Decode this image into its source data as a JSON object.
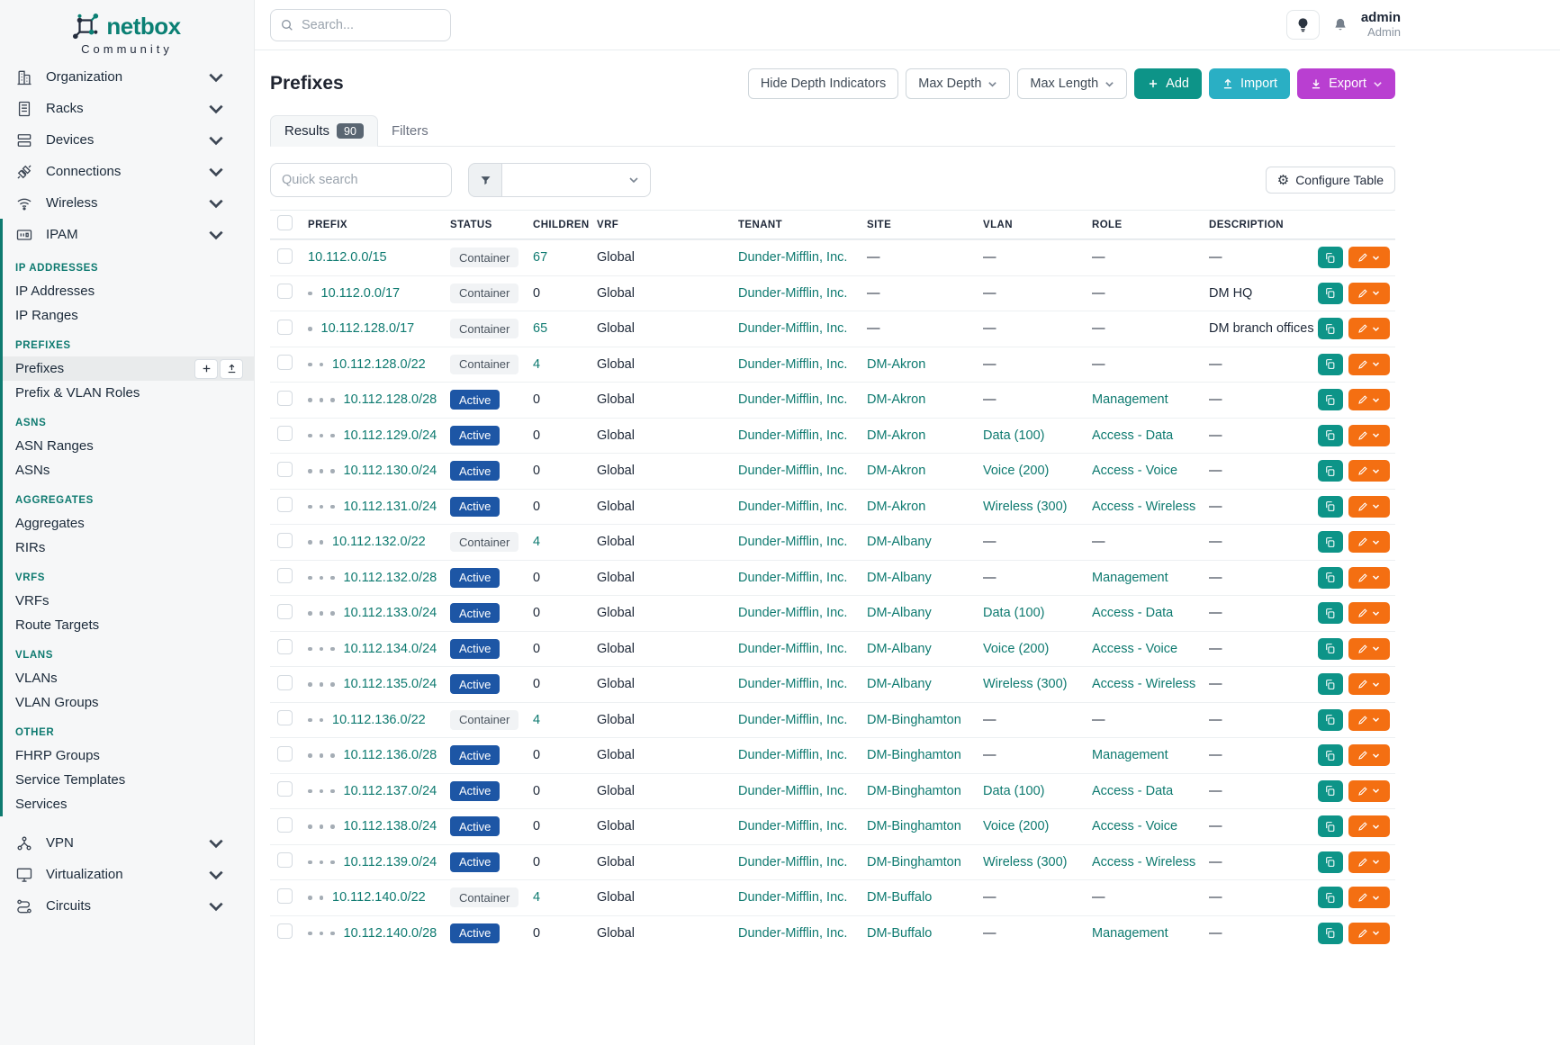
{
  "colors": {
    "accent_teal": "#0e7a70",
    "add_button": "#0d9488",
    "import_button": "#2aafc4",
    "export_button": "#b93fd1",
    "edit_button": "#f46f12",
    "copy_button": "#0d9488",
    "active_badge": "#1d56a5",
    "container_badge_bg": "#f1f3f5"
  },
  "sidebar": {
    "brand": "netbox",
    "brand_sub": "Community",
    "top_items": [
      {
        "label": "Organization",
        "icon": "organization-icon"
      },
      {
        "label": "Racks",
        "icon": "racks-icon"
      },
      {
        "label": "Devices",
        "icon": "devices-icon"
      },
      {
        "label": "Connections",
        "icon": "connections-icon"
      },
      {
        "label": "Wireless",
        "icon": "wireless-icon"
      }
    ],
    "ipam": {
      "label": "IPAM",
      "icon": "ipam-icon"
    },
    "ipam_sections": [
      {
        "title": "IP ADDRESSES",
        "items": [
          {
            "label": "IP Addresses"
          },
          {
            "label": "IP Ranges"
          }
        ]
      },
      {
        "title": "PREFIXES",
        "items": [
          {
            "label": "Prefixes",
            "active": true,
            "actions": [
              "plus-icon",
              "upload-icon"
            ]
          },
          {
            "label": "Prefix & VLAN Roles"
          }
        ]
      },
      {
        "title": "ASNS",
        "items": [
          {
            "label": "ASN Ranges"
          },
          {
            "label": "ASNs"
          }
        ]
      },
      {
        "title": "AGGREGATES",
        "items": [
          {
            "label": "Aggregates"
          },
          {
            "label": "RIRs"
          }
        ]
      },
      {
        "title": "VRFS",
        "items": [
          {
            "label": "VRFs"
          },
          {
            "label": "Route Targets"
          }
        ]
      },
      {
        "title": "VLANS",
        "items": [
          {
            "label": "VLANs"
          },
          {
            "label": "VLAN Groups"
          }
        ]
      },
      {
        "title": "OTHER",
        "items": [
          {
            "label": "FHRP Groups"
          },
          {
            "label": "Service Templates"
          },
          {
            "label": "Services"
          }
        ]
      }
    ],
    "bottom_items": [
      {
        "label": "VPN",
        "icon": "vpn-icon"
      },
      {
        "label": "Virtualization",
        "icon": "virtualization-icon"
      },
      {
        "label": "Circuits",
        "icon": "circuits-icon"
      }
    ]
  },
  "topbar": {
    "search_placeholder": "Search...",
    "user_name": "admin",
    "user_role": "Admin"
  },
  "page": {
    "title": "Prefixes",
    "buttons": {
      "hide_depth": "Hide Depth Indicators",
      "max_depth": "Max Depth",
      "max_length": "Max Length",
      "add": "Add",
      "import": "Import",
      "export": "Export"
    },
    "tabs": {
      "results": "Results",
      "results_count": "90",
      "filters": "Filters"
    },
    "toolbar": {
      "quick_search_placeholder": "Quick search",
      "configure": "Configure Table"
    }
  },
  "table": {
    "columns": [
      "Prefix",
      "Status",
      "Children",
      "VRF",
      "Tenant",
      "Site",
      "VLAN",
      "Role",
      "Description"
    ],
    "rows": [
      {
        "depth": 0,
        "prefix": "10.112.0.0/15",
        "status": "Container",
        "children": "67",
        "vrf": "Global",
        "tenant": "Dunder-Mifflin, Inc.",
        "site": "—",
        "vlan": "—",
        "role": "—",
        "description": "—"
      },
      {
        "depth": 1,
        "prefix": "10.112.0.0/17",
        "status": "Container",
        "children": "0",
        "vrf": "Global",
        "tenant": "Dunder-Mifflin, Inc.",
        "site": "—",
        "vlan": "—",
        "role": "—",
        "description": "DM HQ"
      },
      {
        "depth": 1,
        "prefix": "10.112.128.0/17",
        "status": "Container",
        "children": "65",
        "vrf": "Global",
        "tenant": "Dunder-Mifflin, Inc.",
        "site": "—",
        "vlan": "—",
        "role": "—",
        "description": "DM branch offices"
      },
      {
        "depth": 2,
        "prefix": "10.112.128.0/22",
        "status": "Container",
        "children": "4",
        "vrf": "Global",
        "tenant": "Dunder-Mifflin, Inc.",
        "site": "DM-Akron",
        "vlan": "—",
        "role": "—",
        "description": "—"
      },
      {
        "depth": 3,
        "prefix": "10.112.128.0/28",
        "status": "Active",
        "children": "0",
        "vrf": "Global",
        "tenant": "Dunder-Mifflin, Inc.",
        "site": "DM-Akron",
        "vlan": "—",
        "role": "Management",
        "description": "—"
      },
      {
        "depth": 3,
        "prefix": "10.112.129.0/24",
        "status": "Active",
        "children": "0",
        "vrf": "Global",
        "tenant": "Dunder-Mifflin, Inc.",
        "site": "DM-Akron",
        "vlan": "Data (100)",
        "role": "Access - Data",
        "description": "—"
      },
      {
        "depth": 3,
        "prefix": "10.112.130.0/24",
        "status": "Active",
        "children": "0",
        "vrf": "Global",
        "tenant": "Dunder-Mifflin, Inc.",
        "site": "DM-Akron",
        "vlan": "Voice (200)",
        "role": "Access - Voice",
        "description": "—"
      },
      {
        "depth": 3,
        "prefix": "10.112.131.0/24",
        "status": "Active",
        "children": "0",
        "vrf": "Global",
        "tenant": "Dunder-Mifflin, Inc.",
        "site": "DM-Akron",
        "vlan": "Wireless (300)",
        "role": "Access - Wireless",
        "description": "—"
      },
      {
        "depth": 2,
        "prefix": "10.112.132.0/22",
        "status": "Container",
        "children": "4",
        "vrf": "Global",
        "tenant": "Dunder-Mifflin, Inc.",
        "site": "DM-Albany",
        "vlan": "—",
        "role": "—",
        "description": "—"
      },
      {
        "depth": 3,
        "prefix": "10.112.132.0/28",
        "status": "Active",
        "children": "0",
        "vrf": "Global",
        "tenant": "Dunder-Mifflin, Inc.",
        "site": "DM-Albany",
        "vlan": "—",
        "role": "Management",
        "description": "—"
      },
      {
        "depth": 3,
        "prefix": "10.112.133.0/24",
        "status": "Active",
        "children": "0",
        "vrf": "Global",
        "tenant": "Dunder-Mifflin, Inc.",
        "site": "DM-Albany",
        "vlan": "Data (100)",
        "role": "Access - Data",
        "description": "—"
      },
      {
        "depth": 3,
        "prefix": "10.112.134.0/24",
        "status": "Active",
        "children": "0",
        "vrf": "Global",
        "tenant": "Dunder-Mifflin, Inc.",
        "site": "DM-Albany",
        "vlan": "Voice (200)",
        "role": "Access - Voice",
        "description": "—"
      },
      {
        "depth": 3,
        "prefix": "10.112.135.0/24",
        "status": "Active",
        "children": "0",
        "vrf": "Global",
        "tenant": "Dunder-Mifflin, Inc.",
        "site": "DM-Albany",
        "vlan": "Wireless (300)",
        "role": "Access - Wireless",
        "description": "—"
      },
      {
        "depth": 2,
        "prefix": "10.112.136.0/22",
        "status": "Container",
        "children": "4",
        "vrf": "Global",
        "tenant": "Dunder-Mifflin, Inc.",
        "site": "DM-Binghamton",
        "vlan": "—",
        "role": "—",
        "description": "—"
      },
      {
        "depth": 3,
        "prefix": "10.112.136.0/28",
        "status": "Active",
        "children": "0",
        "vrf": "Global",
        "tenant": "Dunder-Mifflin, Inc.",
        "site": "DM-Binghamton",
        "vlan": "—",
        "role": "Management",
        "description": "—"
      },
      {
        "depth": 3,
        "prefix": "10.112.137.0/24",
        "status": "Active",
        "children": "0",
        "vrf": "Global",
        "tenant": "Dunder-Mifflin, Inc.",
        "site": "DM-Binghamton",
        "vlan": "Data (100)",
        "role": "Access - Data",
        "description": "—"
      },
      {
        "depth": 3,
        "prefix": "10.112.138.0/24",
        "status": "Active",
        "children": "0",
        "vrf": "Global",
        "tenant": "Dunder-Mifflin, Inc.",
        "site": "DM-Binghamton",
        "vlan": "Voice (200)",
        "role": "Access - Voice",
        "description": "—"
      },
      {
        "depth": 3,
        "prefix": "10.112.139.0/24",
        "status": "Active",
        "children": "0",
        "vrf": "Global",
        "tenant": "Dunder-Mifflin, Inc.",
        "site": "DM-Binghamton",
        "vlan": "Wireless (300)",
        "role": "Access - Wireless",
        "description": "—"
      },
      {
        "depth": 2,
        "prefix": "10.112.140.0/22",
        "status": "Container",
        "children": "4",
        "vrf": "Global",
        "tenant": "Dunder-Mifflin, Inc.",
        "site": "DM-Buffalo",
        "vlan": "—",
        "role": "—",
        "description": "—"
      },
      {
        "depth": 3,
        "prefix": "10.112.140.0/28",
        "status": "Active",
        "children": "0",
        "vrf": "Global",
        "tenant": "Dunder-Mifflin, Inc.",
        "site": "DM-Buffalo",
        "vlan": "—",
        "role": "Management",
        "description": "—"
      }
    ]
  }
}
